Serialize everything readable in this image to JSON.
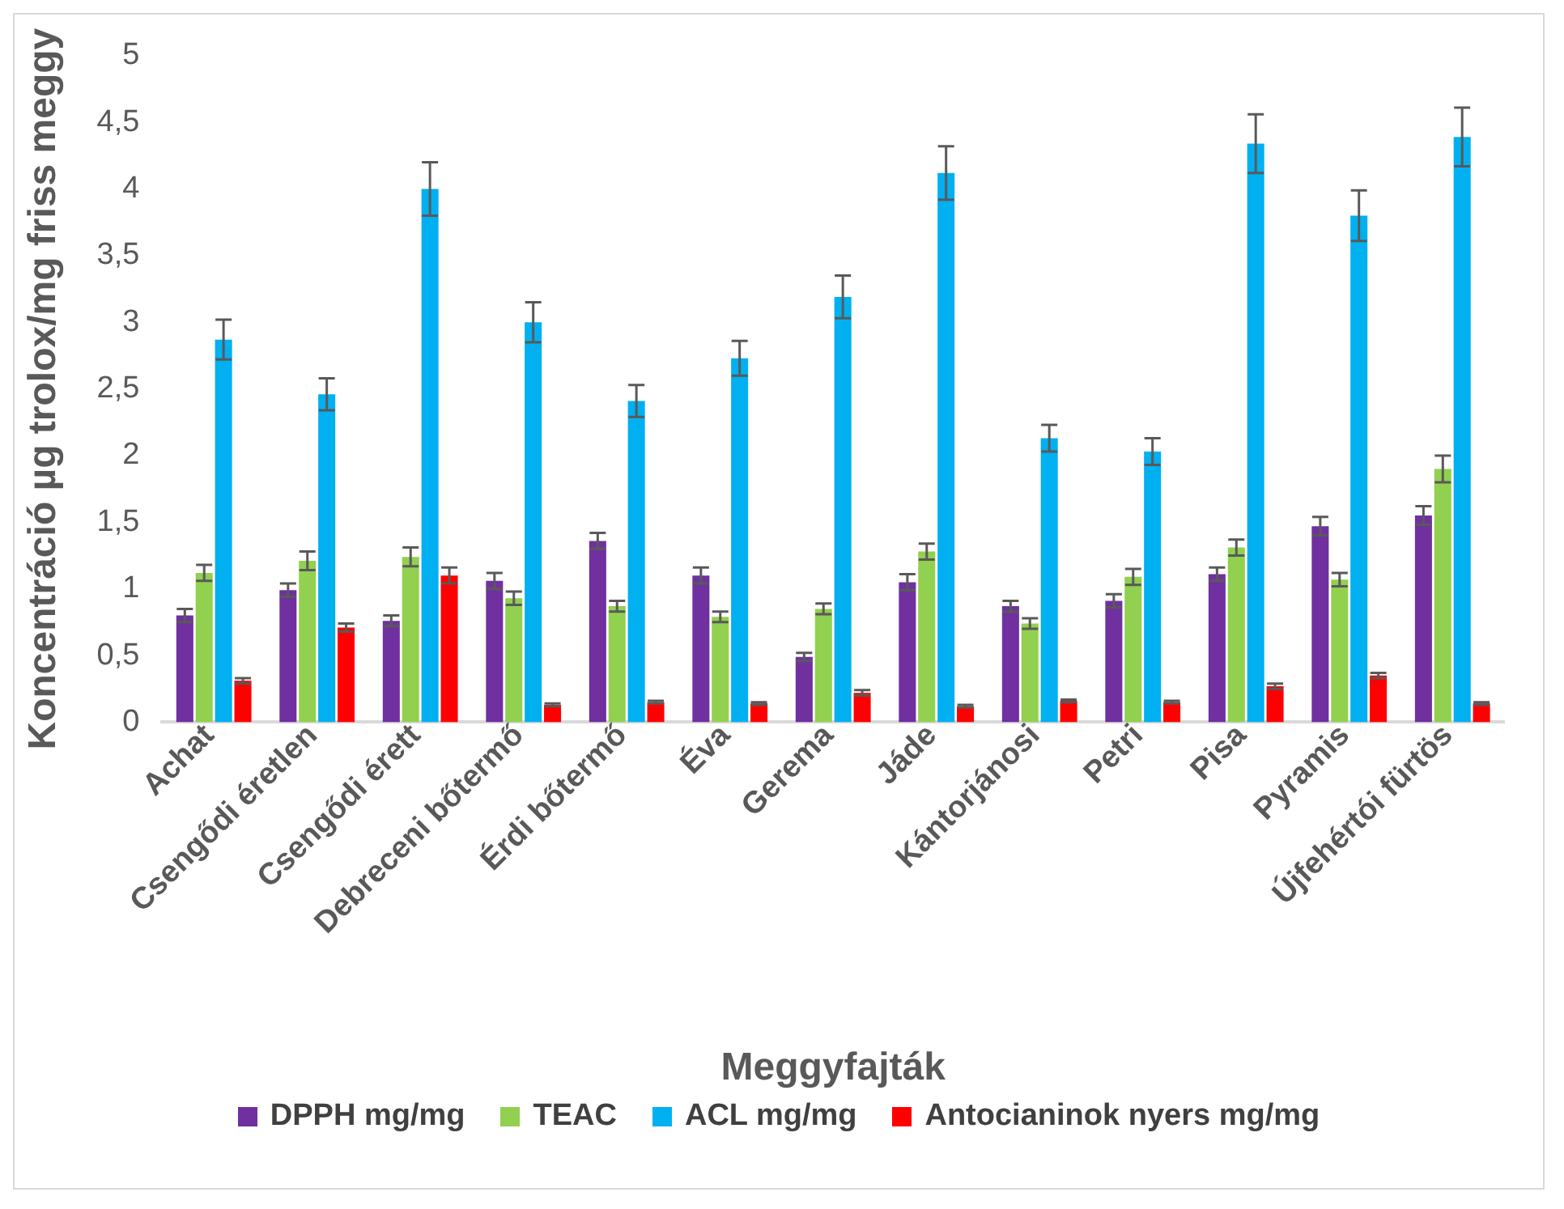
{
  "chart_data": {
    "type": "bar",
    "xlabel": "Meggyfajták",
    "ylabel": "Koncentráció µg trolox/mg friss meggy",
    "categories": [
      "Achat",
      "Csengődi éretlen",
      "Csengődi érett",
      "Debreceni bőtermő",
      "Érdi bőtermő",
      "Éva",
      "Gerema",
      "Jáde",
      "Kántorjánosi",
      "Petri",
      "Pisa",
      "Pyramis",
      "Újfehértói fürtös"
    ],
    "series": [
      {
        "name": "DPPH mg/mg",
        "color": "#7030a0",
        "values": [
          0.8,
          0.99,
          0.76,
          1.06,
          1.36,
          1.1,
          0.49,
          1.05,
          0.87,
          0.91,
          1.11,
          1.47,
          1.55
        ],
        "errors": [
          0.05,
          0.05,
          0.04,
          0.06,
          0.06,
          0.06,
          0.03,
          0.06,
          0.04,
          0.05,
          0.05,
          0.07,
          0.07
        ]
      },
      {
        "name": "TEAC",
        "color": "#92d050",
        "values": [
          1.12,
          1.21,
          1.24,
          0.93,
          0.87,
          0.79,
          0.85,
          1.28,
          0.74,
          1.09,
          1.31,
          1.07,
          1.9
        ],
        "errors": [
          0.06,
          0.07,
          0.07,
          0.05,
          0.04,
          0.04,
          0.04,
          0.06,
          0.04,
          0.06,
          0.06,
          0.05,
          0.1
        ]
      },
      {
        "name": "ACL mg/mg",
        "color": "#00b0f0",
        "values": [
          2.87,
          2.46,
          4.0,
          3.0,
          2.41,
          2.73,
          3.19,
          4.12,
          2.13,
          2.03,
          4.34,
          3.8,
          4.39
        ],
        "errors": [
          0.15,
          0.12,
          0.2,
          0.15,
          0.12,
          0.13,
          0.16,
          0.2,
          0.1,
          0.1,
          0.22,
          0.19,
          0.22
        ]
      },
      {
        "name": "Antocianinok nyers mg/mg",
        "color": "#ff0000",
        "values": [
          0.31,
          0.71,
          1.1,
          0.13,
          0.15,
          0.14,
          0.22,
          0.12,
          0.16,
          0.15,
          0.27,
          0.35,
          0.14
        ],
        "errors": [
          0.02,
          0.03,
          0.06,
          0.01,
          0.01,
          0.01,
          0.02,
          0.01,
          0.01,
          0.01,
          0.02,
          0.02,
          0.01
        ]
      }
    ],
    "ylim": [
      0,
      5
    ],
    "yticks": [
      0,
      {
        "value": 0.5,
        "label": "0,5"
      },
      1,
      {
        "value": 1.5,
        "label": "1,5"
      },
      2,
      {
        "value": 2.5,
        "label": "2,5"
      },
      3,
      {
        "value": 3.5,
        "label": "3,5"
      },
      4,
      {
        "value": 4.5,
        "label": "4,5"
      },
      5
    ],
    "grid": false,
    "legend": "bottom"
  }
}
